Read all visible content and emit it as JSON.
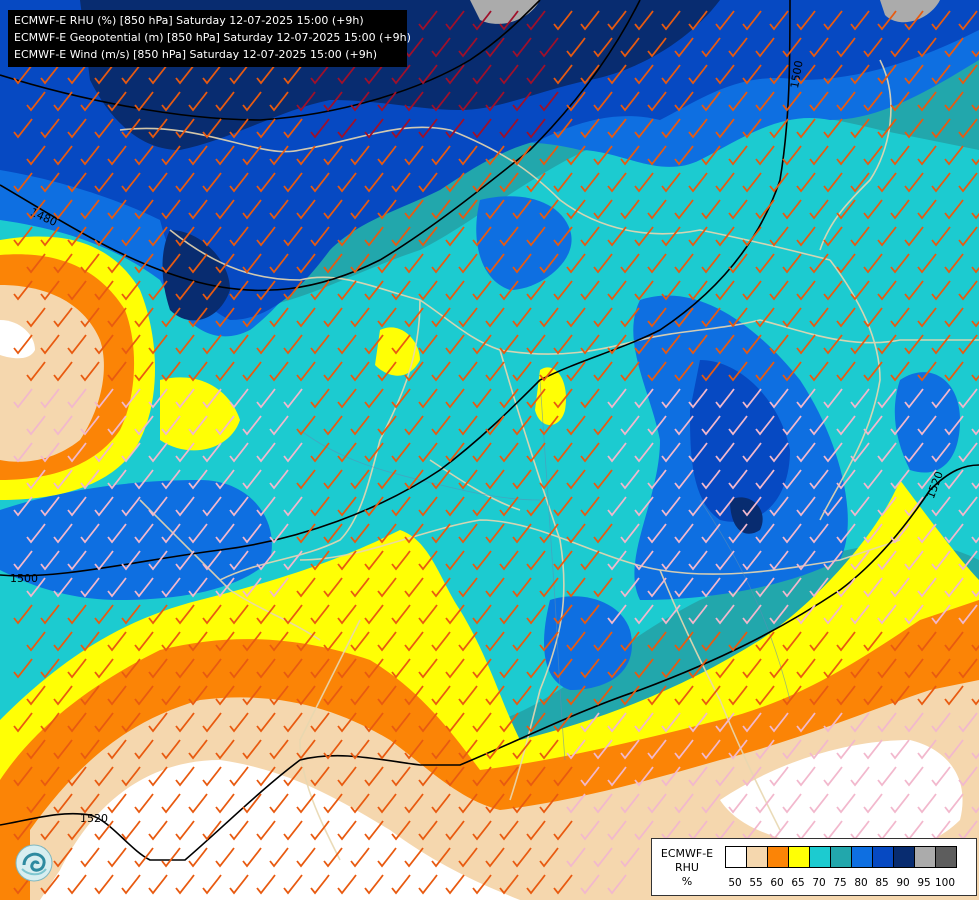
{
  "header": {
    "lines": [
      "ECMWF-E RHU (%) [850 hPa] Saturday 12-07-2025 15:00 (+9h)",
      "ECMWF-E Geopotential (m) [850 hPa] Saturday 12-07-2025 15:00 (+9h)",
      "ECMWF-E Wind (m/s) [850 hPa] Saturday 12-07-2025 15:00 (+9h)"
    ]
  },
  "contours": {
    "labels": [
      "1480",
      "1500",
      "1500",
      "1520",
      "1520"
    ]
  },
  "legend": {
    "title_line1": "ECMWF-E",
    "title_line2": "RHU",
    "unit": "%",
    "ticks": [
      "50",
      "55",
      "60",
      "65",
      "70",
      "75",
      "80",
      "85",
      "90",
      "95",
      "100"
    ],
    "colors": [
      "#ffffff",
      "#f5d7ae",
      "#fb8406",
      "#ffff05",
      "#1ccbd0",
      "#22a7ac",
      "#0e6fe1",
      "#0649c2",
      "#082c70",
      "#ababab",
      "#5d5d5d"
    ]
  },
  "map_colors": {
    "rh_50": "#ffffff",
    "rh_55": "#f5d7ae",
    "rh_60": "#fb8406",
    "rh_65": "#ffff05",
    "rh_70": "#1ccbd0",
    "rh_75": "#22a7ac",
    "rh_80": "#0e6fe1",
    "rh_85": "#0649c2",
    "rh_90": "#082c70",
    "wind_barb_strong": "#e85a10",
    "wind_barb_weak": "#f2b8cd",
    "wind_barb_dark": "#a0102a",
    "borders": "#e8d7b0"
  }
}
